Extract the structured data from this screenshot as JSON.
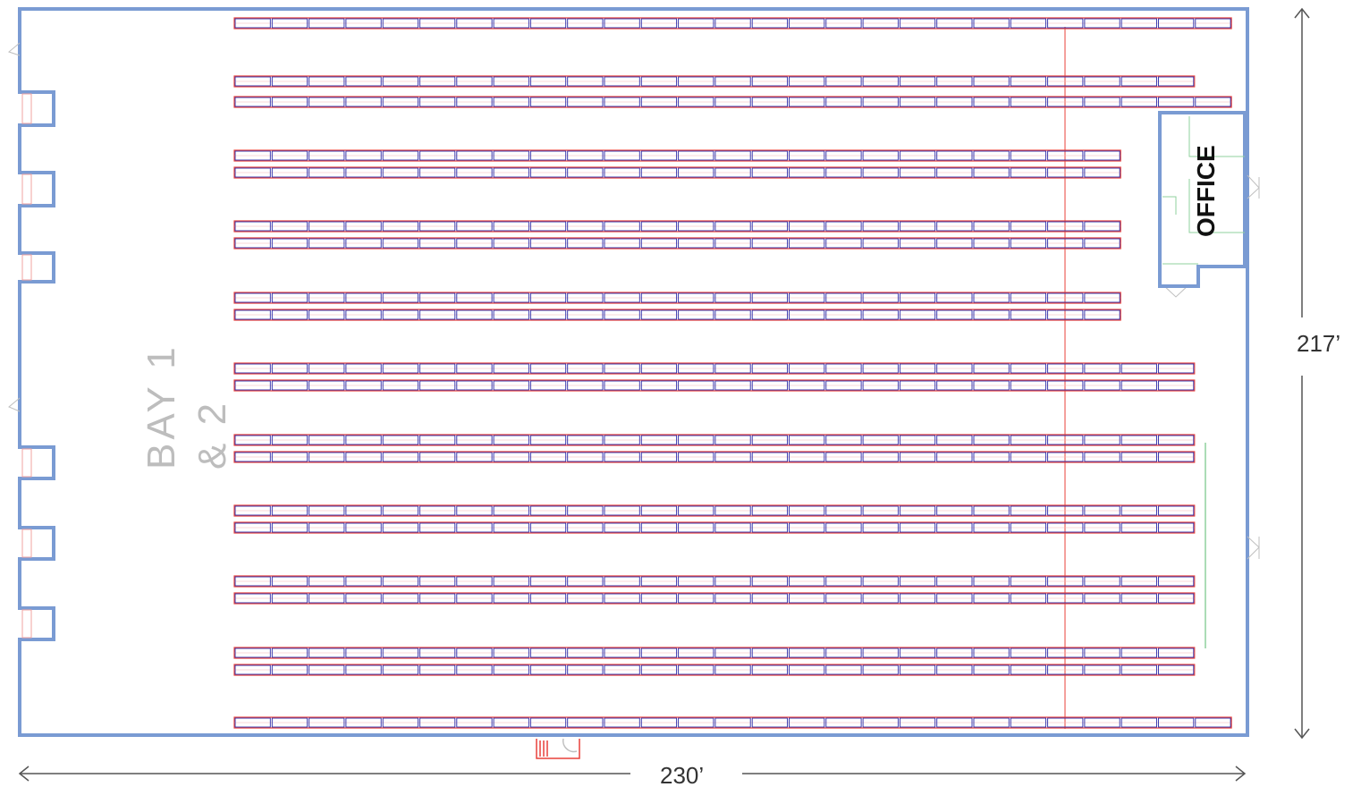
{
  "dimensions": {
    "width": "230’",
    "height": "217’"
  },
  "labels": {
    "bay": "BAY 1",
    "bay_line2": "& 2",
    "office": "OFFICE"
  },
  "rack_row_counts": [
    27,
    26,
    27,
    24,
    24,
    24,
    24,
    24,
    24,
    26,
    26,
    26,
    26,
    26,
    26,
    26,
    26,
    26,
    26,
    27
  ],
  "colors": {
    "wall": "#7a9bd3",
    "rack_fill_stroke": "#e8403a",
    "rack_divider": "#2a2aa8",
    "dimension": "#555555",
    "bay_label": "#bdbdbd",
    "egress": "#8fd19e"
  }
}
